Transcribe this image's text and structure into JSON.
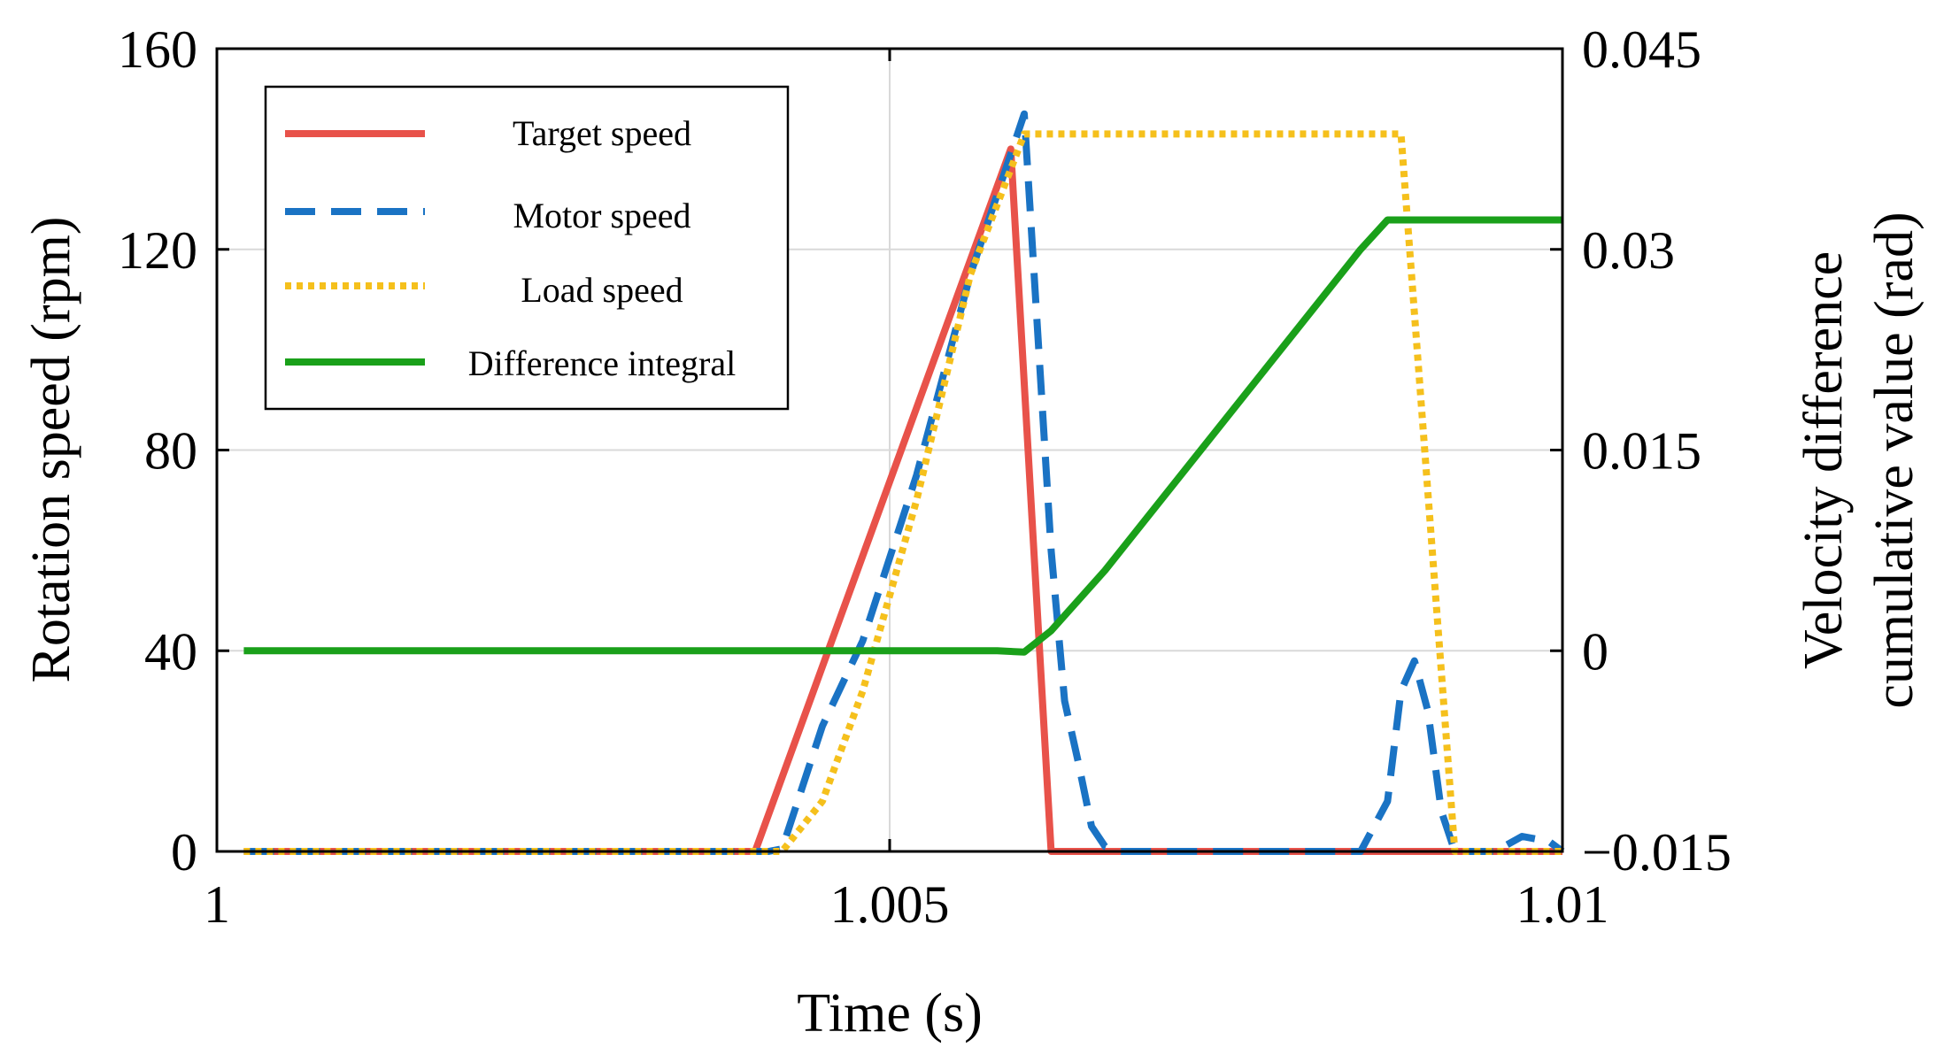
{
  "chart_data": {
    "type": "line",
    "xlabel": "Time (s)",
    "ylabel_left": "Rotation speed (rpm)",
    "ylabel_right_lines": [
      "Velocity difference",
      "cumulative value (rad)"
    ],
    "xlim": [
      1,
      1.01
    ],
    "ylim_left": [
      0,
      160
    ],
    "ylim_right": [
      -0.015,
      0.045
    ],
    "grid": true,
    "legend_position": "top-left",
    "x_ticks": [
      {
        "value": 1,
        "label": "1"
      },
      {
        "value": 1.005,
        "label": "1.005"
      },
      {
        "value": 1.01,
        "label": "1.01"
      }
    ],
    "y_left_ticks": [
      {
        "value": 0,
        "label": "0"
      },
      {
        "value": 40,
        "label": "40"
      },
      {
        "value": 80,
        "label": "80"
      },
      {
        "value": 120,
        "label": "120"
      },
      {
        "value": 160,
        "label": "160"
      }
    ],
    "y_right_ticks": [
      {
        "value": -0.015,
        "label": "−0.015"
      },
      {
        "value": 0,
        "label": "0"
      },
      {
        "value": 0.015,
        "label": "0.015"
      },
      {
        "value": 0.03,
        "label": "0.03"
      },
      {
        "value": 0.045,
        "label": "0.045"
      }
    ],
    "series": [
      {
        "name": "Target speed",
        "axis": "left",
        "color": "#e8524a",
        "style": "solid",
        "points": [
          [
            1.0002,
            0
          ],
          [
            1.004,
            0
          ],
          [
            1.0059,
            140
          ],
          [
            1.0062,
            0
          ],
          [
            1.01,
            0
          ]
        ]
      },
      {
        "name": "Motor speed",
        "axis": "left",
        "color": "#1a73c4",
        "style": "dashed",
        "points": [
          [
            1.0002,
            0
          ],
          [
            1.0041,
            0
          ],
          [
            1.0042,
            0.5
          ],
          [
            1.0045,
            25
          ],
          [
            1.0048,
            42
          ],
          [
            1.0052,
            75
          ],
          [
            1.0056,
            115
          ],
          [
            1.006,
            147
          ],
          [
            1.0062,
            60
          ],
          [
            1.0063,
            30
          ],
          [
            1.0064,
            18
          ],
          [
            1.0065,
            5
          ],
          [
            1.0066,
            1
          ],
          [
            1.0067,
            0
          ],
          [
            1.0085,
            0
          ],
          [
            1.0087,
            10
          ],
          [
            1.0088,
            32
          ],
          [
            1.0089,
            38
          ],
          [
            1.009,
            28
          ],
          [
            1.0091,
            8
          ],
          [
            1.0092,
            0
          ],
          [
            1.0095,
            0
          ],
          [
            1.0097,
            3
          ],
          [
            1.0099,
            2
          ],
          [
            1.0101,
            0
          ],
          [
            1.01,
            0
          ]
        ]
      },
      {
        "name": "Load speed",
        "axis": "left",
        "color": "#f5c01c",
        "style": "dotted",
        "points": [
          [
            1.0002,
            0
          ],
          [
            1.0042,
            0
          ],
          [
            1.0045,
            10
          ],
          [
            1.0048,
            32
          ],
          [
            1.0052,
            70
          ],
          [
            1.0056,
            115
          ],
          [
            1.006,
            143
          ],
          [
            1.0088,
            143
          ],
          [
            1.0092,
            0
          ],
          [
            1.01,
            0
          ]
        ]
      },
      {
        "name": "Difference integral",
        "axis": "right",
        "color": "#1aa01a",
        "style": "solid",
        "points": [
          [
            1.0002,
            0
          ],
          [
            1.0058,
            0
          ],
          [
            1.006,
            -0.0001
          ],
          [
            1.0062,
            0.0015
          ],
          [
            1.0066,
            0.006
          ],
          [
            1.0085,
            0.03
          ],
          [
            1.0087,
            0.0322
          ],
          [
            1.01,
            0.0322
          ]
        ]
      }
    ]
  }
}
